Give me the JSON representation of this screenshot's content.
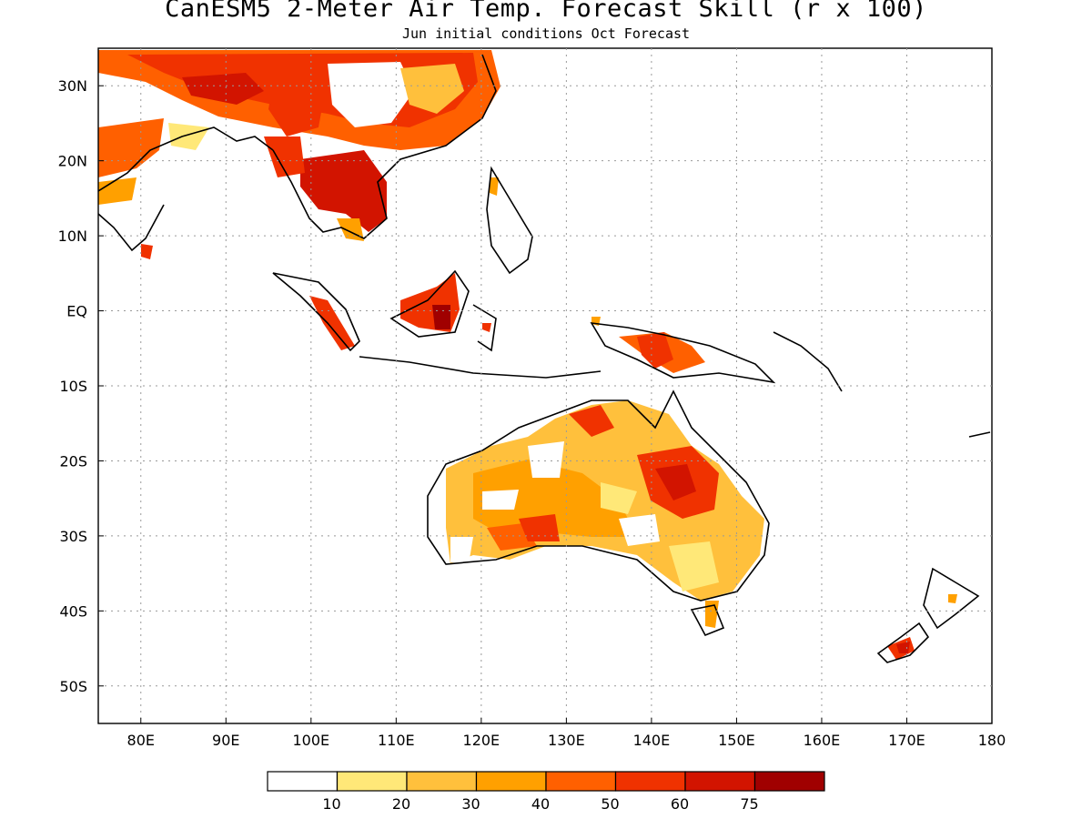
{
  "title": "CanESM5 2-Meter Air Temp. Forecast Skill (r x 100)",
  "subtitle": "Jun initial conditions  Oct Forecast",
  "map": {
    "lon_range": [
      75,
      180
    ],
    "lat_range": [
      -55,
      35
    ],
    "lon_ticks": [
      {
        "value": 80,
        "label": "80E"
      },
      {
        "value": 90,
        "label": "90E"
      },
      {
        "value": 100,
        "label": "100E"
      },
      {
        "value": 110,
        "label": "110E"
      },
      {
        "value": 120,
        "label": "120E"
      },
      {
        "value": 130,
        "label": "130E"
      },
      {
        "value": 140,
        "label": "140E"
      },
      {
        "value": 150,
        "label": "150E"
      },
      {
        "value": 160,
        "label": "160E"
      },
      {
        "value": 170,
        "label": "170E"
      },
      {
        "value": 180,
        "label": "180"
      }
    ],
    "lat_ticks": [
      {
        "value": 30,
        "label": "30N"
      },
      {
        "value": 20,
        "label": "20N"
      },
      {
        "value": 10,
        "label": "10N"
      },
      {
        "value": 0,
        "label": "EQ"
      },
      {
        "value": -10,
        "label": "10S"
      },
      {
        "value": -20,
        "label": "20S"
      },
      {
        "value": -30,
        "label": "30S"
      },
      {
        "value": -40,
        "label": "40S"
      },
      {
        "value": -50,
        "label": "50S"
      }
    ],
    "grid": "dotted"
  },
  "colorbar": {
    "colors": [
      "#ffffff",
      "#ffe878",
      "#ffc03c",
      "#ffa000",
      "#ff6000",
      "#f03200",
      "#d21400",
      "#a00000"
    ],
    "labels": [
      "10",
      "20",
      "30",
      "40",
      "50",
      "60",
      "75"
    ]
  }
}
